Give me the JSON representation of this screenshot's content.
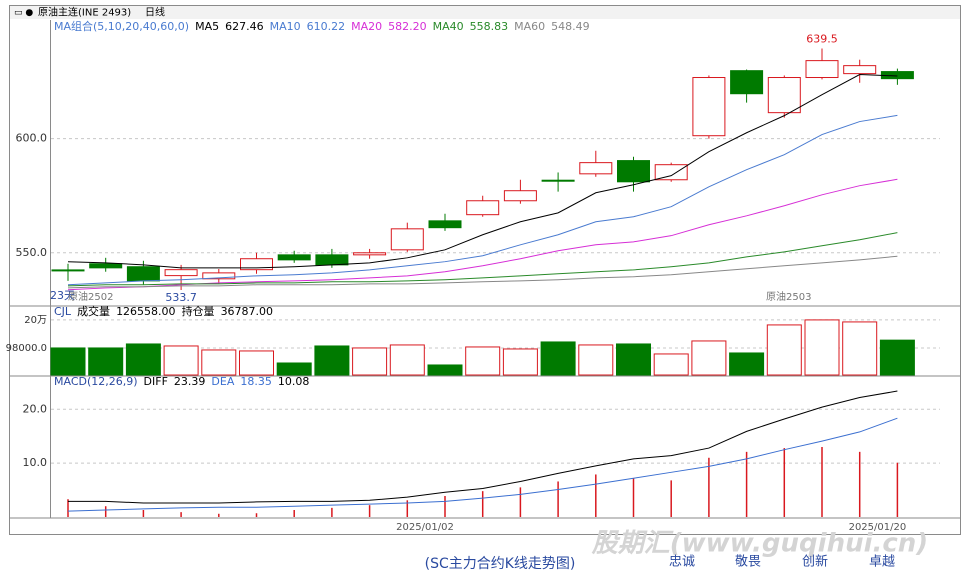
{
  "header": {
    "symbol": "原油主连(INE 2493)",
    "period": "日线"
  },
  "chart_data": [
    {
      "type": "candlestick",
      "title": "MA组合(5,10,20,40,60,0)",
      "up_color": "#d9181e",
      "down_color": "#007a00",
      "open": [
        542.5,
        545.2,
        543.9,
        540,
        538.6,
        542.6,
        549.1,
        549.1,
        549.1,
        551.3,
        564,
        566.7,
        572.8,
        581.8,
        584.6,
        590.4,
        582,
        601.3,
        629.8,
        611.4,
        626.8,
        628.5,
        629.4
      ],
      "high": [
        545.2,
        547.8,
        546.5,
        544.7,
        542.9,
        550,
        550.9,
        551.7,
        551.7,
        563.2,
        567.1,
        575,
        582,
        585.2,
        594.7,
        592.1,
        589.5,
        627.7,
        630.3,
        627.7,
        639.5,
        634.6,
        630.7
      ],
      "low": [
        537.7,
        541.7,
        536,
        533.7,
        536.4,
        540.8,
        545.6,
        543.4,
        547.4,
        550.4,
        559.6,
        565.8,
        571.5,
        576.8,
        583.3,
        576.8,
        581.1,
        600,
        615.8,
        609.2,
        626,
        624.5,
        623.6
      ],
      "close": [
        542.1,
        543.4,
        537.7,
        542.6,
        541.2,
        547.4,
        546.9,
        544.7,
        550,
        560.5,
        561,
        572.8,
        577.2,
        581.4,
        589.5,
        581.1,
        588.6,
        626.8,
        619.7,
        626.8,
        634.2,
        632,
        626.3
      ],
      "series": [
        {
          "name": "MA5",
          "color": "#000000",
          "readout": {
            "value": 627.46,
            "label": "627.46"
          },
          "values": [
            546.1,
            545.6,
            544.7,
            543.4,
            543.4,
            543.4,
            543.9,
            544.7,
            545.6,
            547.8,
            551.3,
            557.9,
            563.6,
            567.5,
            576.3,
            579.8,
            583.8,
            594.3,
            602.6,
            610.1,
            619.3,
            628.1,
            627.46
          ]
        },
        {
          "name": "MA10",
          "color": "#4a7bd0",
          "readout": {
            "value": 610.22,
            "label": "610.22"
          },
          "values": [
            536,
            536.8,
            537.7,
            538.2,
            539,
            539.9,
            540.4,
            541.2,
            542.5,
            544.3,
            546.1,
            548.7,
            553.5,
            557.9,
            563.6,
            565.8,
            570.2,
            578.9,
            586.4,
            593,
            601.8,
            607.5,
            610.22
          ]
        },
        {
          "name": "MA20",
          "color": "#d62fd6",
          "readout": {
            "value": 582.2,
            "label": "582.20"
          },
          "values": [
            533.8,
            534.6,
            535.1,
            536,
            536.8,
            537.3,
            537.7,
            538.2,
            539,
            539.9,
            541.7,
            544.3,
            547.4,
            550.9,
            553.5,
            554.8,
            557.5,
            562.3,
            566.2,
            570.6,
            575.4,
            579.4,
            582.2
          ]
        },
        {
          "name": "MA40",
          "color": "#2a8a2a",
          "readout": {
            "value": 558.83,
            "label": "558.83"
          },
          "values": [
            535.5,
            536,
            536,
            536.4,
            536.4,
            536.8,
            536.8,
            537.3,
            537.3,
            537.7,
            538.2,
            539,
            539.9,
            540.8,
            541.7,
            542.5,
            543.9,
            545.6,
            548.2,
            550.4,
            553.1,
            555.7,
            558.83
          ]
        },
        {
          "name": "MA60",
          "color": "#888888",
          "readout": {
            "value": 548.49,
            "label": "548.49"
          },
          "values": [
            534.6,
            535.1,
            535.1,
            535.5,
            535.5,
            536,
            536,
            536,
            536.4,
            536.4,
            536.8,
            537.3,
            537.7,
            538.2,
            539,
            539.5,
            540.4,
            541.7,
            543,
            544.3,
            545.6,
            546.9,
            548.49
          ]
        }
      ],
      "annotations": [
        639.5,
        533.7
      ],
      "notes": [
        "23天",
        "原油2502",
        "原油2503"
      ],
      "ylim": [
        528,
        652
      ],
      "yticks": [
        {
          "value": 550,
          "label": "550.0"
        },
        {
          "value": 600,
          "label": "600.0"
        }
      ],
      "grid": true
    },
    {
      "type": "bar",
      "title": "CJL",
      "values": [
        98200,
        98200,
        112700,
        105400,
        90900,
        87300,
        43600,
        105400,
        98200,
        109100,
        36400,
        101800,
        94500,
        120000,
        109100,
        112700,
        76400,
        123600,
        80000,
        181800,
        200000,
        192700,
        126558
      ],
      "readouts": [
        {
          "name": "成交量",
          "value": 126558,
          "label": "126558.00"
        },
        {
          "name": "持仓量",
          "value": 36787,
          "label": "36787.00"
        }
      ],
      "ylim": [
        0,
        236000
      ],
      "yticks": [
        {
          "value": 200000,
          "label": "20万"
        },
        {
          "value": 98000,
          "label": "98000.0"
        }
      ],
      "grid": true
    },
    {
      "type": "macd",
      "title": "MACD(12,26,9)",
      "categories": [
        null,
        null,
        null,
        null,
        null,
        null,
        null,
        null,
        null,
        null,
        "2025/01/02",
        null,
        null,
        null,
        null,
        null,
        null,
        null,
        null,
        null,
        null,
        null,
        "2025/01/20"
      ],
      "series": [
        {
          "name": "DIFF",
          "color": "#000000",
          "values": [
            2.9,
            2.9,
            2.6,
            2.6,
            2.6,
            2.8,
            2.9,
            2.9,
            3.1,
            3.7,
            4.6,
            5.3,
            6.6,
            8.1,
            9.5,
            10.8,
            11.4,
            12.8,
            15.9,
            18.2,
            20.4,
            22.2,
            23.39
          ]
        },
        {
          "name": "DEA",
          "color": "#3b6fd0",
          "values": [
            1.1,
            1.3,
            1.5,
            1.7,
            1.8,
            1.8,
            2,
            2.2,
            2.4,
            2.6,
            2.9,
            3.5,
            4.2,
            5.1,
            6.1,
            7.2,
            8.3,
            9.4,
            10.8,
            12.5,
            14.1,
            15.8,
            18.35
          ]
        }
      ],
      "histogram": {
        "color": "#d9181e",
        "values": [
          3.3,
          2,
          1.3,
          0.9,
          0.6,
          0.7,
          1.3,
          1.7,
          2.2,
          3.1,
          3.9,
          4.8,
          5.5,
          6.6,
          7.9,
          7.2,
          6.8,
          11,
          12.1,
          12.8,
          13,
          12.1,
          10.08
        ]
      },
      "ylim": [
        0,
        26
      ],
      "yticks": [
        {
          "value": 10,
          "label": "10.0"
        },
        {
          "value": 20,
          "label": "20.0"
        }
      ],
      "grid": true
    }
  ],
  "footer": {
    "caption": "(SC主力合约K线走势图)",
    "watermark": "股期汇(www.guqihui.cn)",
    "slogan": [
      "忠诚",
      "敬畏",
      "创新",
      "卓越"
    ]
  }
}
